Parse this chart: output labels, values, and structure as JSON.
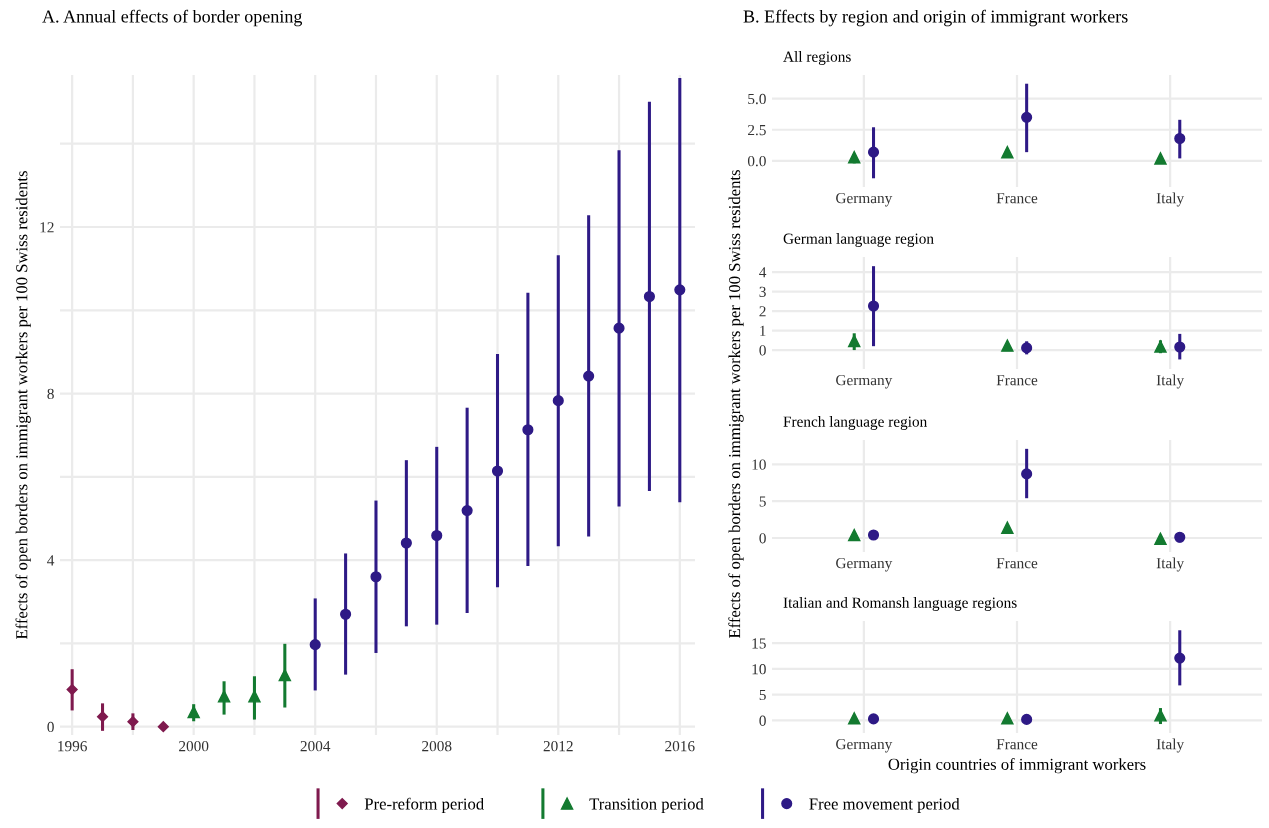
{
  "chart_data": [
    {
      "type": "scatter",
      "title": "A. Annual effects of border opening",
      "ylabel": "Effects of open borders on immigrant workers per 100 Swiss residents",
      "xlim": [
        1995.6,
        2016.5
      ],
      "xticks": [
        1996,
        {
          "value": 1998,
          "label": null
        },
        2000,
        {
          "value": 2002,
          "label": null
        },
        2004,
        {
          "value": 2006,
          "label": null
        },
        2008,
        {
          "value": 2010,
          "label": null
        },
        2012,
        {
          "value": 2014,
          "label": null
        },
        2016
      ],
      "ylim": [
        -0.2,
        15.65
      ],
      "yticks": [
        0,
        {
          "value": 2,
          "label": null
        },
        4,
        {
          "value": 6,
          "label": null
        },
        8,
        {
          "value": 10,
          "label": null
        },
        12,
        {
          "value": 14,
          "label": null
        }
      ],
      "grid": true,
      "legend": "bottom",
      "series": [
        {
          "name": "Pre-reform period",
          "color": "#7f1a4e",
          "marker": "diamond",
          "x": [
            1996,
            1997,
            1998,
            1999
          ],
          "values": [
            0.89,
            0.24,
            0.12,
            0.0
          ],
          "errors": [
            [
              0.39,
              1.38
            ],
            [
              -0.1,
              0.56
            ],
            [
              -0.08,
              0.32
            ],
            null
          ]
        },
        {
          "name": "Transition period",
          "color": "#137a30",
          "marker": "triangle",
          "x": [
            2000,
            2001,
            2002,
            2003
          ],
          "values": [
            0.35,
            0.73,
            0.73,
            1.24
          ],
          "errors": [
            [
              0.13,
              0.54
            ],
            [
              0.29,
              1.09
            ],
            [
              0.17,
              1.21
            ],
            [
              0.46,
              1.99
            ]
          ]
        },
        {
          "name": "Free movement period",
          "color": "#2e1a86",
          "marker": "circle",
          "x": [
            2004,
            2005,
            2006,
            2007,
            2008,
            2009,
            2010,
            2011,
            2012,
            2013,
            2014,
            2015,
            2016
          ],
          "values": [
            1.97,
            2.7,
            3.6,
            4.41,
            4.59,
            5.19,
            6.14,
            7.13,
            7.83,
            8.42,
            9.57,
            10.33,
            10.49
          ],
          "errors": [
            [
              0.87,
              3.08
            ],
            [
              1.25,
              4.16
            ],
            [
              1.77,
              5.43
            ],
            [
              2.41,
              6.4
            ],
            [
              2.45,
              6.72
            ],
            [
              2.73,
              7.66
            ],
            [
              3.35,
              8.95
            ],
            [
              3.86,
              10.42
            ],
            [
              4.33,
              11.32
            ],
            [
              4.57,
              12.28
            ],
            [
              5.29,
              13.84
            ],
            [
              5.66,
              15.01
            ],
            [
              5.39,
              15.58
            ]
          ]
        }
      ]
    },
    {
      "type": "scatter",
      "title": "B. Effects by region and origin of immigrant workers",
      "subtitle": "All regions",
      "ylabel": "Effects of open borders on immigrant workers per 100 Swiss residents",
      "categories": [
        "Germany",
        "France",
        "Italy"
      ],
      "ylim": [
        -2.1,
        6.9
      ],
      "yticks": [
        {
          "value": 0,
          "label": "0.0"
        },
        {
          "value": 2.5,
          "label": "2.5"
        },
        {
          "value": 5,
          "label": "5.0"
        }
      ],
      "grid": true,
      "series": [
        {
          "color": "#137a30",
          "marker": "triangle",
          "values": [
            0.3,
            0.7,
            0.2
          ],
          "errors": [
            [
              -0.2,
              0.5
            ],
            null,
            null
          ]
        },
        {
          "color": "#2e1a86",
          "marker": "circle",
          "values": [
            0.7,
            3.5,
            1.8
          ],
          "errors": [
            [
              -1.4,
              2.7
            ],
            [
              0.7,
              6.2
            ],
            [
              0.2,
              3.3
            ]
          ]
        }
      ]
    },
    {
      "type": "scatter",
      "title": "German language region",
      "categories": [
        "Germany",
        "France",
        "Italy"
      ],
      "ylim": [
        -0.97,
        4.77
      ],
      "yticks": [
        0,
        1,
        2,
        3,
        4
      ],
      "grid": true,
      "series": [
        {
          "color": "#137a30",
          "marker": "triangle",
          "values": [
            0.47,
            0.23,
            0.18
          ],
          "errors": [
            [
              0.0,
              0.86
            ],
            null,
            [
              -0.16,
              0.5
            ]
          ]
        },
        {
          "color": "#2e1a86",
          "marker": "circle",
          "values": [
            2.26,
            0.11,
            0.16
          ],
          "errors": [
            [
              0.2,
              4.3
            ],
            [
              -0.22,
              0.45
            ],
            [
              -0.48,
              0.83
            ]
          ]
        }
      ]
    },
    {
      "type": "scatter",
      "title": "French language region",
      "categories": [
        "Germany",
        "France",
        "Italy"
      ],
      "ylim": [
        -1.9,
        13.3
      ],
      "yticks": [
        0,
        5,
        10
      ],
      "grid": true,
      "series": [
        {
          "color": "#137a30",
          "marker": "triangle",
          "values": [
            0.4,
            1.4,
            -0.1
          ],
          "errors": [
            null,
            null,
            null
          ]
        },
        {
          "color": "#2e1a86",
          "marker": "circle",
          "values": [
            0.4,
            8.7,
            0.1
          ],
          "errors": [
            null,
            [
              5.4,
              12.1
            ],
            [
              -0.6,
              0.8
            ]
          ]
        }
      ]
    },
    {
      "type": "scatter",
      "title": "Italian and Romansh language regions",
      "xlabel": "Origin countries of immigrant workers",
      "categories": [
        "Germany",
        "France",
        "Italy"
      ],
      "ylim": [
        -2.44,
        19.3
      ],
      "yticks": [
        0,
        5,
        10,
        15
      ],
      "grid": true,
      "series": [
        {
          "color": "#137a30",
          "marker": "triangle",
          "values": [
            0.4,
            0.4,
            1.0
          ],
          "errors": [
            null,
            null,
            [
              -0.7,
              2.4
            ]
          ]
        },
        {
          "color": "#2e1a86",
          "marker": "circle",
          "values": [
            0.3,
            0.2,
            12.1
          ],
          "errors": [
            null,
            null,
            [
              6.8,
              17.5
            ]
          ]
        }
      ]
    }
  ]
}
